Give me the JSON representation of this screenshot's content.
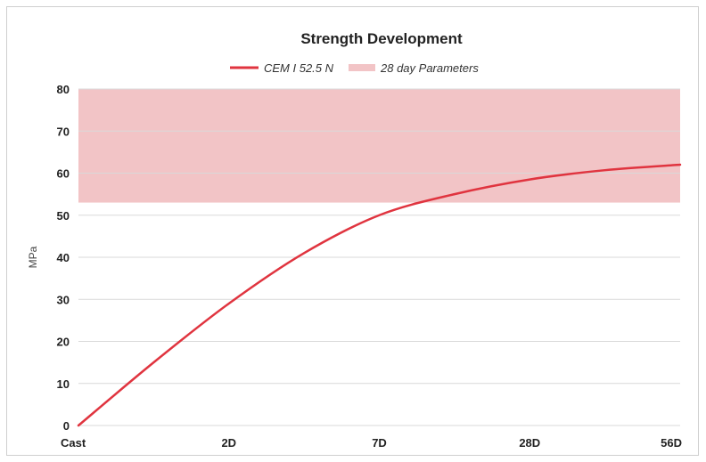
{
  "chart_data": {
    "type": "line",
    "title": "Strength Development",
    "xlabel": "",
    "ylabel": "MPa",
    "categories": [
      "Cast",
      "2D",
      "7D",
      "28D",
      "56D"
    ],
    "ylim": [
      0,
      80
    ],
    "yticks": [
      0,
      10,
      20,
      30,
      40,
      50,
      60,
      70,
      80
    ],
    "grid": true,
    "legend_position": "top-center",
    "series": [
      {
        "name": "CEM I 52.5 N",
        "color": "#e0343f",
        "points": [
          {
            "x": 0,
            "y": 0
          },
          {
            "x": 0.5,
            "y": 15
          },
          {
            "x": 1,
            "y": 29
          },
          {
            "x": 1.5,
            "y": 41
          },
          {
            "x": 2,
            "y": 50
          },
          {
            "x": 2.5,
            "y": 55
          },
          {
            "x": 3,
            "y": 58.5
          },
          {
            "x": 3.5,
            "y": 60.7
          },
          {
            "x": 4,
            "y": 62
          }
        ]
      }
    ],
    "bands": [
      {
        "name": "28 day Parameters",
        "color": "#f2c4c6",
        "ymin": 53,
        "ymax": 80
      }
    ]
  }
}
